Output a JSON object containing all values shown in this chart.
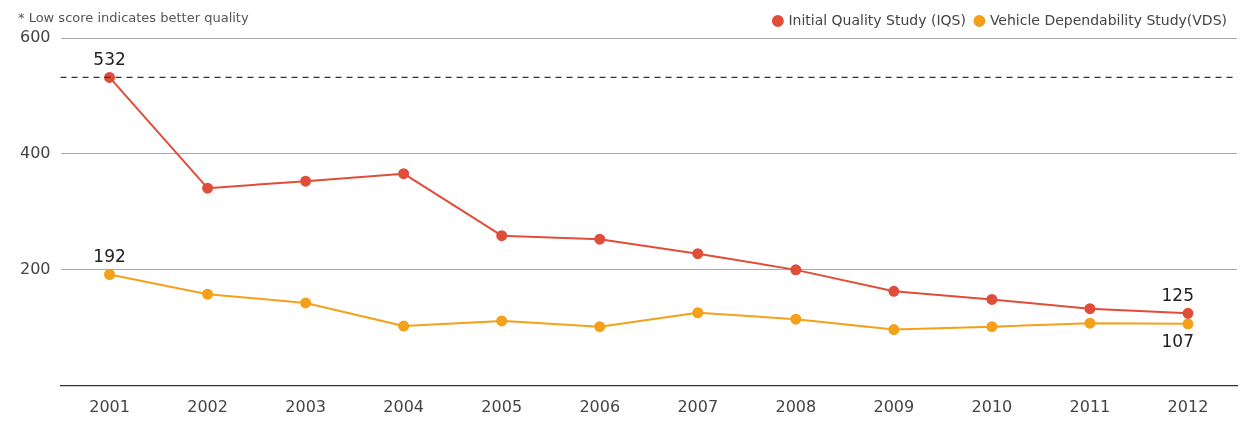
{
  "chart_data": {
    "type": "line",
    "categories": [
      "2001",
      "2002",
      "2003",
      "2004",
      "2005",
      "2006",
      "2007",
      "2008",
      "2009",
      "2010",
      "2011",
      "2012"
    ],
    "series": [
      {
        "name": "Initial Quality Study (IQS)",
        "color": "#e04e39",
        "values": [
          532,
          341,
          353,
          366,
          259,
          253,
          228,
          200,
          163,
          149,
          133,
          125
        ],
        "value_labels": [
          "532",
          null,
          null,
          null,
          null,
          null,
          null,
          null,
          null,
          null,
          null,
          "125"
        ]
      },
      {
        "name": "Vehicle Dependability Study(VDS)",
        "color": "#f5a01a",
        "values": [
          192,
          158,
          143,
          103,
          112,
          102,
          126,
          115,
          97,
          102,
          108,
          107
        ],
        "value_labels": [
          "192",
          null,
          null,
          null,
          null,
          null,
          null,
          null,
          null,
          null,
          null,
          "107"
        ]
      }
    ],
    "ylim": [
      0,
      600
    ],
    "yticks": [
      200,
      400,
      600
    ],
    "grid": "y",
    "legend": "top right",
    "marker": "circle",
    "line_style": "solid",
    "ref_lines": [
      {
        "axis": "y",
        "value": 532,
        "color": "#333333",
        "line_style": "dashed"
      }
    ],
    "annotations": [
      "* Low score indicates better quality"
    ]
  }
}
